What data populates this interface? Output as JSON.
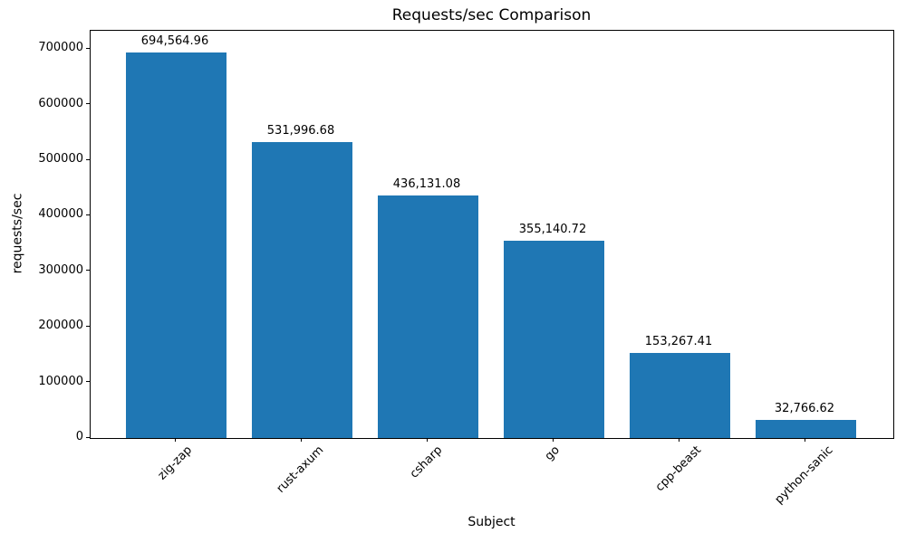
{
  "chart_data": {
    "type": "bar",
    "title": "Requests/sec Comparison",
    "xlabel": "Subject",
    "ylabel": "requests/sec",
    "categories": [
      "zig-zap",
      "rust-axum",
      "csharp",
      "go",
      "cpp-beast",
      "python-sanic"
    ],
    "values": [
      694564.96,
      531996.68,
      436131.08,
      355140.72,
      153267.41,
      32766.62
    ],
    "value_labels": [
      "694,564.96",
      "531,996.68",
      "436,131.08",
      "355,140.72",
      "153,267.41",
      "32,766.62"
    ],
    "bar_color": "#1f77b4",
    "text_color": "#000000",
    "ylim": [
      0,
      733000
    ],
    "yticks": [
      0,
      100000,
      200000,
      300000,
      400000,
      500000,
      600000,
      700000
    ],
    "ytick_labels": [
      "0",
      "100000",
      "200000",
      "300000",
      "400000",
      "500000",
      "600000",
      "700000"
    ],
    "grid": false,
    "legend_position": "none"
  }
}
